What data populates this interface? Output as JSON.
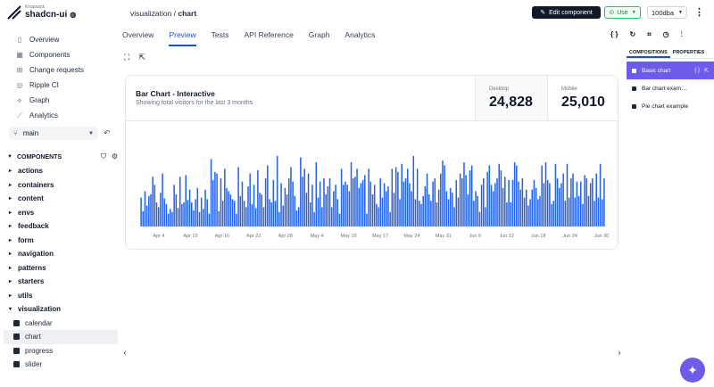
{
  "brand": {
    "small": "Knapsack",
    "name": "shadcn-ui"
  },
  "nav": [
    {
      "label": "Overview",
      "icon": "book-icon"
    },
    {
      "label": "Components",
      "icon": "grid-icon"
    },
    {
      "label": "Change requests",
      "icon": "change-request-icon"
    },
    {
      "label": "Ripple CI",
      "icon": "ripple-icon"
    },
    {
      "label": "Graph",
      "icon": "graph-icon"
    },
    {
      "label": "Analytics",
      "icon": "analytics-icon"
    }
  ],
  "branch": {
    "name": "main"
  },
  "components": {
    "heading": "COMPONENTS",
    "groups": [
      "actions",
      "containers",
      "content",
      "envs",
      "feedback",
      "form",
      "navigation",
      "patterns",
      "starters",
      "utils",
      "visualization"
    ],
    "visualization_items": [
      "calendar",
      "chart",
      "progress",
      "slider"
    ],
    "active_item": "chart"
  },
  "header": {
    "crumb_parent": "visualization / ",
    "crumb_current": "chart",
    "edit_label": "Edit component",
    "use_label": "Use",
    "version": "100dba"
  },
  "tabs": [
    "Overview",
    "Preview",
    "Tests",
    "API Reference",
    "Graph",
    "Analytics"
  ],
  "active_tab": "Preview",
  "card": {
    "title": "Bar Chart - Interactive",
    "subtitle": "Showing total visitors for the last 3 months",
    "stats": [
      {
        "label": "Desktop",
        "value": "24,828"
      },
      {
        "label": "Mobile",
        "value": "25,010"
      }
    ]
  },
  "chart_data": {
    "type": "bar",
    "grid": false,
    "color": "#2563eb",
    "xtick_labels": [
      "Apr 4",
      "Apr 10",
      "Apr 16",
      "Apr 22",
      "Apr 28",
      "May 4",
      "May 10",
      "May 17",
      "May 24",
      "May 31",
      "Jun 6",
      "Jun 12",
      "Jun 18",
      "Jun 24",
      "Jun 30"
    ],
    "ylim": [
      0,
      500
    ],
    "values": [
      180,
      95,
      220,
      130,
      190,
      200,
      310,
      260,
      150,
      120,
      210,
      330,
      175,
      140,
      80,
      110,
      90,
      260,
      200,
      115,
      310,
      140,
      150,
      320,
      165,
      230,
      150,
      100,
      170,
      240,
      90,
      180,
      110,
      230,
      170,
      80,
      420,
      290,
      340,
      330,
      95,
      300,
      160,
      360,
      240,
      220,
      200,
      170,
      160,
      80,
      370,
      190,
      280,
      160,
      120,
      250,
      330,
      140,
      260,
      115,
      350,
      210,
      200,
      120,
      300,
      380,
      170,
      150,
      290,
      160,
      440,
      90,
      270,
      130,
      240,
      200,
      300,
      370,
      280,
      190,
      100,
      120,
      430,
      310,
      360,
      210,
      330,
      150,
      260,
      90,
      400,
      180,
      280,
      120,
      300,
      200,
      250,
      300,
      120,
      220,
      260,
      170,
      80,
      360,
      260,
      280,
      260,
      220,
      400,
      300,
      310,
      360,
      240,
      270,
      290,
      320,
      80,
      360,
      280,
      200,
      260,
      140,
      120,
      300,
      180,
      270,
      220,
      250,
      90,
      360,
      210,
      370,
      340,
      170,
      390,
      280,
      300,
      360,
      270,
      220,
      440,
      170,
      360,
      160,
      140,
      190,
      250,
      330,
      200,
      160,
      280,
      300,
      150,
      230,
      330,
      410,
      380,
      220,
      170,
      240,
      210,
      120,
      290,
      180,
      330,
      300,
      400,
      320,
      200,
      350,
      380,
      160,
      220,
      190,
      90,
      260,
      300,
      120,
      340,
      380,
      260,
      220,
      270,
      300,
      390,
      350,
      240,
      310,
      150,
      290,
      150,
      290,
      400,
      380,
      280,
      230,
      300,
      180,
      230,
      130,
      170,
      230,
      290,
      240,
      170,
      190,
      380,
      270,
      400,
      290,
      270,
      140,
      160,
      390,
      300,
      240,
      270,
      330,
      160,
      390,
      180,
      300,
      330,
      180,
      280,
      190,
      280,
      140,
      320,
      300,
      190,
      270,
      300,
      160,
      330,
      180,
      390,
      170,
      300
    ]
  },
  "right_panel": {
    "tabs": [
      "COMPOSITIONS",
      "PROPERTIES"
    ],
    "items": [
      "Basic chart",
      "Bar chart exam…",
      "Pie chart example"
    ]
  }
}
